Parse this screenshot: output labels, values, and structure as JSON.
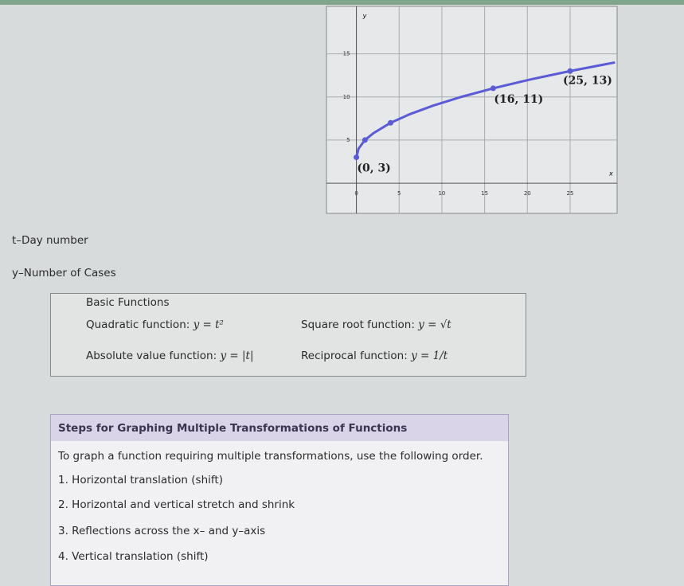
{
  "graph": {
    "type": "line",
    "x_label": "x",
    "y_label": "y",
    "xlim": [
      -3.5,
      30.5
    ],
    "ylim": [
      -3.5,
      20.5
    ],
    "xticks": [
      0,
      5,
      10,
      15,
      20,
      25
    ],
    "yticks": [
      5,
      10,
      15
    ],
    "curve": {
      "x": [
        0,
        0.25,
        1,
        2,
        4,
        6.25,
        9,
        12.25,
        16,
        20.25,
        25,
        30.25
      ],
      "y": [
        3,
        4,
        5,
        5.8,
        7,
        8,
        9,
        10,
        11,
        12,
        13,
        14
      ]
    },
    "points": {
      "x": [
        0,
        1,
        4,
        16,
        25
      ],
      "y": [
        3,
        5,
        7,
        11,
        13
      ]
    },
    "annotations": [
      {
        "text": "(0, 3)",
        "x": 0,
        "y": 3
      },
      {
        "text": "(16, 11)",
        "x": 16,
        "y": 11
      },
      {
        "text": "(25, 13)",
        "x": 25,
        "y": 13
      }
    ],
    "color": "#5b5bd6",
    "grid": true
  },
  "variables": [
    "t–Day number",
    "y–Number of Cases"
  ],
  "basic_functions": {
    "title": "Basic Functions",
    "items": [
      {
        "name": "Quadratic function:",
        "formula": "y = t²"
      },
      {
        "name": "Square root function:",
        "formula": "y = √t"
      },
      {
        "name": "Absolute value function:",
        "formula": "y = |t|"
      },
      {
        "name": "Reciprocal function:",
        "formula": "y = 1/t"
      }
    ]
  },
  "steps": {
    "title": "Steps for Graphing Multiple Transformations of Functions",
    "intro": "To graph a function requiring multiple transformations, use the following order.",
    "items": [
      "1. Horizontal translation (shift)",
      "2. Horizontal and vertical stretch and shrink",
      "3. Reflections across the x– and y–axis",
      "4. Vertical translation (shift)"
    ]
  }
}
